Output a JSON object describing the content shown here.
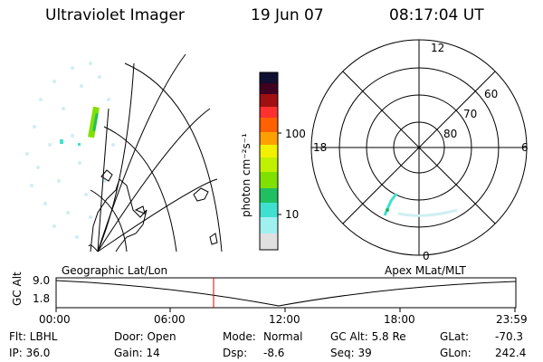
{
  "header": {
    "instrument": "Ultraviolet Imager",
    "date": "19 Jun 07",
    "time": "08:17:04 UT"
  },
  "colorbar": {
    "unit_label": "photon cm⁻²s⁻¹",
    "ticks": [
      "100",
      "10"
    ],
    "colors": [
      "#101030",
      "#400020",
      "#a01010",
      "#ff3030",
      "#ffa000",
      "#f0f000",
      "#80e000",
      "#20c060",
      "#40e0d0",
      "#a0f0f0",
      "#e0e0e0"
    ]
  },
  "polar_plot": {
    "mlt_labels": {
      "top": "12",
      "left": "18",
      "right": "6",
      "bottom": "0"
    },
    "lat_labels": [
      "60",
      "70",
      "80"
    ]
  },
  "timeline": {
    "y_axis_label": "GC Alt",
    "y_ticks": [
      "9.0",
      "1.8"
    ],
    "left_label": "Geographic Lat/Lon",
    "right_label": "Apex MLat/MLT",
    "x_ticks": [
      "00:00",
      "06:00",
      "12:00",
      "18:00",
      "23:59"
    ],
    "marker_color": "#e00000"
  },
  "status": {
    "row1": {
      "flt": "Flt: LBHL",
      "door": "Door: Open",
      "mode_label": "Mode:",
      "mode_value": "Normal",
      "gcalt": "GC Alt: 5.8 Re",
      "glat_label": "GLat:",
      "glat_value": "-70.3"
    },
    "row2": {
      "ip": "IP: 36.0",
      "gain": "Gain: 14",
      "dsp_label": "Dsp:",
      "dsp_value": "-8.6",
      "seq": "Seq: 39",
      "glon_label": "GLon:",
      "glon_value": "242.4"
    }
  }
}
